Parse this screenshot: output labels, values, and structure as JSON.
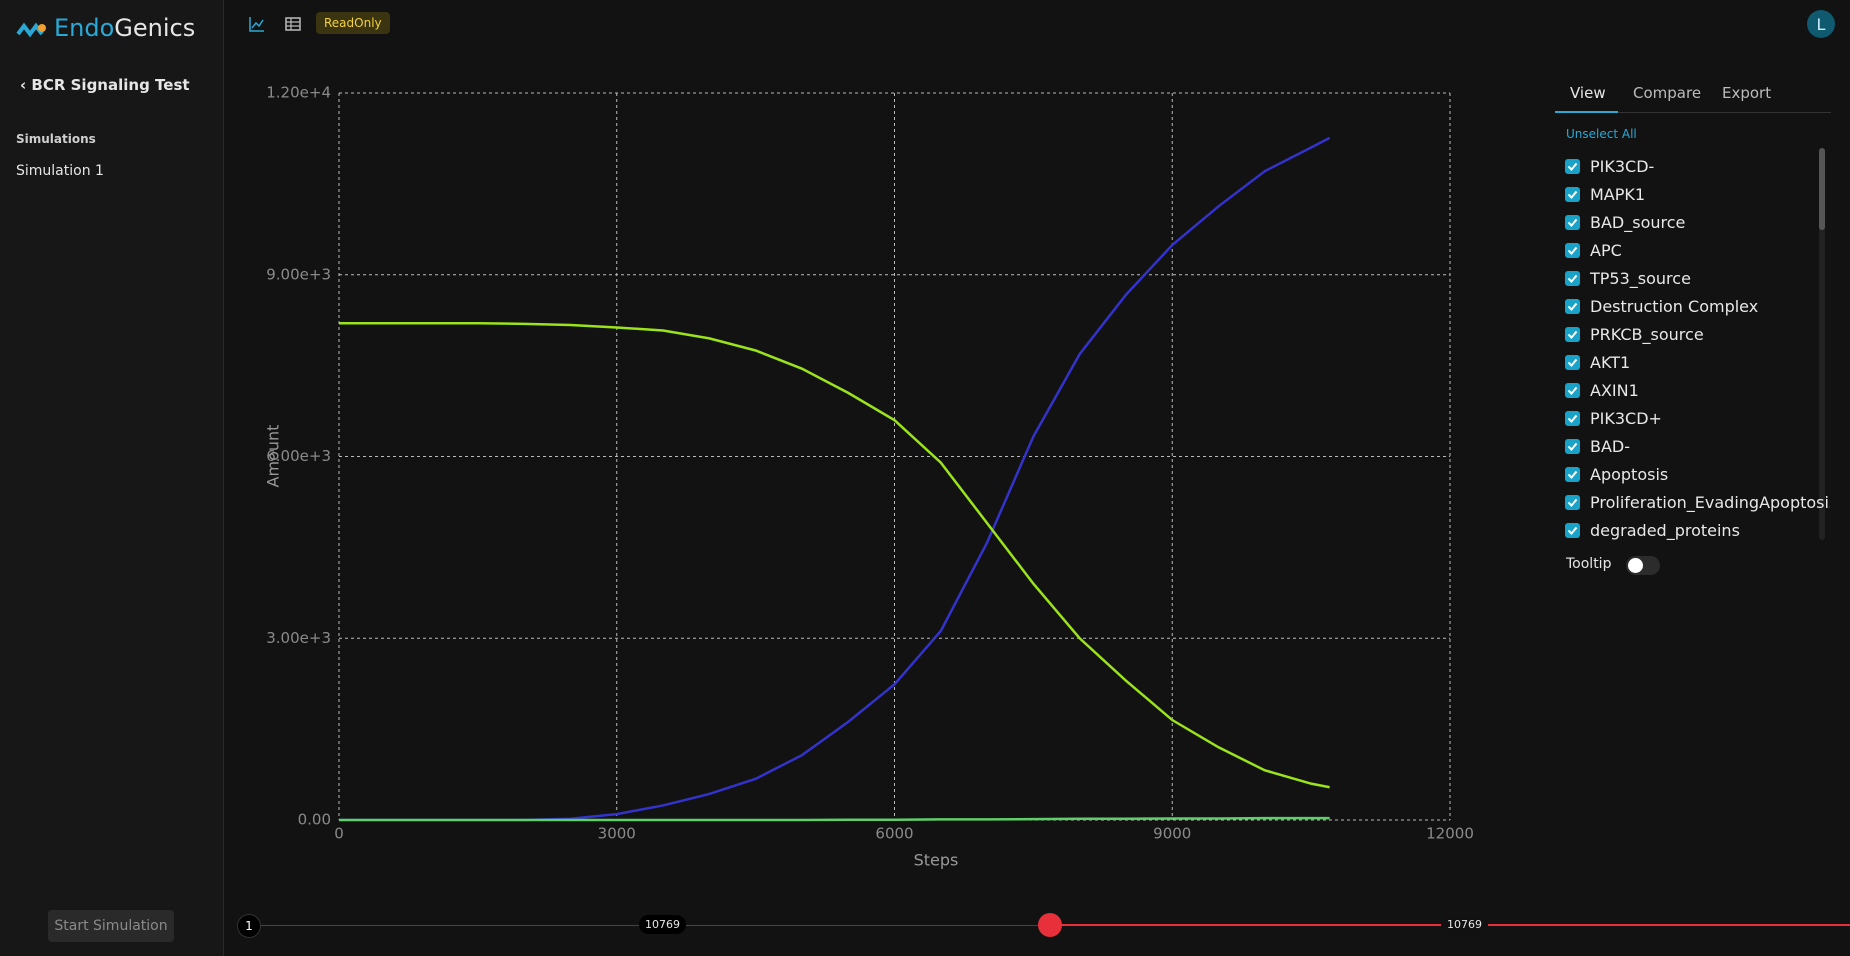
{
  "app": {
    "brand_prefix": "Endo",
    "brand_suffix": "Genics",
    "project": "BCR Signaling Test",
    "section": "Simulations",
    "simulations": [
      "Simulation 1"
    ],
    "start_button": "Start Simulation",
    "badge": "ReadOnly",
    "avatar": "L"
  },
  "chart_data": {
    "type": "line",
    "xlabel": "Steps",
    "ylabel": "Amount",
    "x": [
      0,
      500,
      1000,
      1500,
      2000,
      2500,
      3000,
      3500,
      4000,
      4500,
      5000,
      5500,
      6000,
      6500,
      7000,
      7500,
      8000,
      8500,
      9000,
      9500,
      10000,
      10500,
      10700
    ],
    "series": [
      {
        "color": "#3333cc",
        "values": [
          0,
          0,
          0,
          0,
          0,
          20,
          97,
          240,
          430,
          680,
          1070,
          1620,
          2240,
          3120,
          4580,
          6330,
          7690,
          8670,
          9490,
          10130,
          10710,
          11100,
          11260
        ]
      },
      {
        "color": "#9be31a",
        "values": [
          8200,
          8200,
          8200,
          8200,
          8190,
          8170,
          8130,
          8080,
          7950,
          7750,
          7450,
          7050,
          6600,
          5900,
          4900,
          3900,
          3000,
          2300,
          1650,
          1200,
          820,
          600,
          540
        ]
      },
      {
        "color": "#5fcf6a",
        "values": [
          0,
          0,
          0,
          0,
          0,
          0,
          0,
          0,
          0,
          0,
          0,
          5,
          5,
          10,
          10,
          15,
          20,
          20,
          25,
          25,
          30,
          30,
          30
        ]
      }
    ],
    "xlim": [
      0,
      12000
    ],
    "ylim": [
      0,
      12000
    ],
    "xticks": [
      0,
      3000,
      6000,
      9000,
      12000
    ],
    "yticks": [
      {
        "value": 0,
        "label": "0.00"
      },
      {
        "value": 3000,
        "label": "3.00e+3"
      },
      {
        "value": 6000,
        "label": "6.00e+3"
      },
      {
        "value": 9000,
        "label": "9.00e+3"
      },
      {
        "value": 12000,
        "label": "1.20e+4"
      }
    ],
    "grid": true
  },
  "panel": {
    "tabs": [
      "View",
      "Compare",
      "Export"
    ],
    "unselect": "Unselect All",
    "species": [
      "PIK3CD-",
      "MAPK1",
      "BAD_source",
      "APC",
      "TP53_source",
      "Destruction Complex",
      "PRKCB_source",
      "AKT1",
      "AXIN1",
      "PIK3CD+",
      "BAD-",
      "Apoptosis",
      "Proliferation_EvadingApoptosis_r",
      "degraded_proteins"
    ],
    "tooltip_label": "Tooltip"
  },
  "slider": {
    "start": "1",
    "current": 10769,
    "max": 10769
  }
}
